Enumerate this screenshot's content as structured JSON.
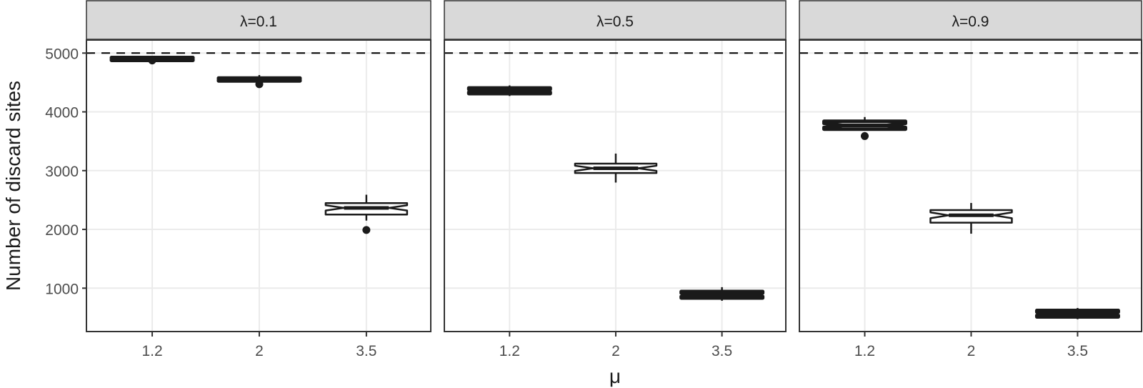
{
  "chart_data": {
    "type": "boxplot",
    "title": "",
    "xlabel": "μ",
    "ylabel": "Number of discard sites",
    "ylim": [
      258,
      5219
    ],
    "yticks": [
      1000,
      2000,
      3000,
      4000,
      5000
    ],
    "ytick_labels": [
      "1000",
      "2000",
      "3000",
      "4000",
      "5000"
    ],
    "categories": [
      "1.2",
      "2",
      "3.5"
    ],
    "reference_line": {
      "y": 5000,
      "style": "dashed",
      "color": "#000000"
    },
    "grid": true,
    "notched": true,
    "facets": [
      {
        "label": "λ=0.1",
        "boxes": [
          {
            "x": "1.2",
            "whisker_low": 4870,
            "q1": 4885,
            "median": 4905,
            "q3": 4925,
            "whisker_high": 4935,
            "outliers": [
              4875
            ]
          },
          {
            "x": "2",
            "whisker_low": 4530,
            "q1": 4535,
            "median": 4555,
            "q3": 4575,
            "whisker_high": 4626,
            "outliers": [
              4470
            ]
          },
          {
            "x": "3.5",
            "whisker_low": 2150,
            "q1": 2253,
            "median": 2366,
            "q3": 2447,
            "whisker_high": 2590,
            "outliers": [
              1990
            ]
          }
        ]
      },
      {
        "label": "λ=0.5",
        "boxes": [
          {
            "x": "1.2",
            "whisker_low": 4270,
            "q1": 4311,
            "median": 4360,
            "q3": 4407,
            "whisker_high": 4450,
            "outliers": []
          },
          {
            "x": "2",
            "whisker_low": 2797,
            "q1": 2960,
            "median": 3040,
            "q3": 3119,
            "whisker_high": 3290,
            "outliers": []
          },
          {
            "x": "3.5",
            "whisker_low": 786,
            "q1": 833,
            "median": 888,
            "q3": 943,
            "whisker_high": 1017,
            "outliers": []
          }
        ]
      },
      {
        "label": "λ=0.9",
        "boxes": [
          {
            "x": "1.2",
            "whisker_low": 3700,
            "q1": 3706,
            "median": 3770,
            "q3": 3840,
            "whisker_high": 3912,
            "outliers": [
              3588
            ]
          },
          {
            "x": "2",
            "whisker_low": 1927,
            "q1": 2115,
            "median": 2240,
            "q3": 2329,
            "whisker_high": 2450,
            "outliers": []
          },
          {
            "x": "3.5",
            "whisker_low": 472,
            "q1": 512,
            "median": 565,
            "q3": 620,
            "whisker_high": 663,
            "outliers": []
          }
        ]
      }
    ]
  },
  "colors": {
    "strip_fill": "#d9d9d9",
    "panel_border": "#333333",
    "grid": "#ebebeb",
    "box_line": "#1a1a1a",
    "box_fill": "#ffffff",
    "tick_label": "#4d4d4d",
    "title": "#1a1a1a"
  }
}
